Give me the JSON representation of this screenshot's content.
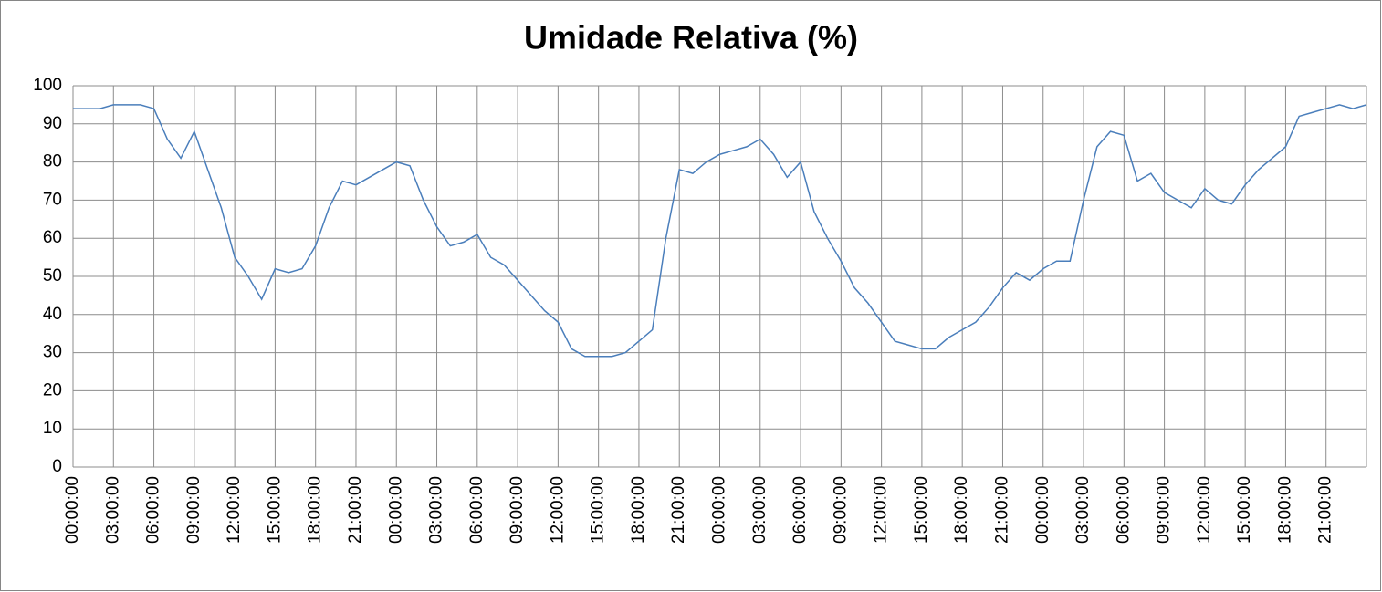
{
  "chart_data": {
    "type": "line",
    "title": "Umidade Relativa (%)",
    "categories": [
      "00:00:00",
      null,
      null,
      "03:00:00",
      null,
      null,
      "06:00:00",
      null,
      null,
      "09:00:00",
      null,
      null,
      "12:00:00",
      null,
      null,
      "15:00:00",
      null,
      null,
      "18:00:00",
      null,
      null,
      "21:00:00",
      null,
      null,
      "00:00:00",
      null,
      null,
      "03:00:00",
      null,
      null,
      "06:00:00",
      null,
      null,
      "09:00:00",
      null,
      null,
      "12:00:00",
      null,
      null,
      "15:00:00",
      null,
      null,
      "18:00:00",
      null,
      null,
      "21:00:00",
      null,
      null,
      "00:00:00",
      null,
      null,
      "03:00:00",
      null,
      null,
      "06:00:00",
      null,
      null,
      "09:00:00",
      null,
      null,
      "12:00:00",
      null,
      null,
      "15:00:00",
      null,
      null,
      "18:00:00",
      null,
      null,
      "21:00:00",
      null,
      null,
      "00:00:00",
      null,
      null,
      "03:00:00",
      null,
      null,
      "06:00:00",
      null,
      null,
      "09:00:00",
      null,
      null,
      "12:00:00",
      null,
      null,
      "15:00:00",
      null,
      null,
      "18:00:00",
      null,
      null,
      "21:00:00",
      null,
      null,
      null
    ],
    "values": [
      94,
      94,
      94,
      95,
      95,
      95,
      94,
      86,
      81,
      88,
      78,
      68,
      55,
      50,
      44,
      52,
      51,
      52,
      58,
      68,
      75,
      74,
      76,
      78,
      80,
      79,
      70,
      63,
      58,
      59,
      61,
      55,
      53,
      49,
      45,
      41,
      38,
      31,
      29,
      29,
      29,
      30,
      33,
      36,
      60,
      78,
      77,
      80,
      82,
      83,
      84,
      86,
      82,
      76,
      80,
      67,
      60,
      54,
      47,
      43,
      38,
      33,
      32,
      31,
      31,
      34,
      36,
      38,
      42,
      47,
      51,
      49,
      52,
      54,
      54,
      70,
      84,
      88,
      87,
      75,
      77,
      72,
      70,
      68,
      73,
      70,
      69,
      74,
      78,
      81,
      84,
      92,
      93,
      94,
      95,
      94,
      95
    ],
    "color": "#4a7ebb",
    "ylim": [
      0,
      100
    ],
    "yticks": [
      0,
      10,
      20,
      30,
      40,
      50,
      60,
      70,
      80,
      90,
      100
    ],
    "grid": true
  }
}
